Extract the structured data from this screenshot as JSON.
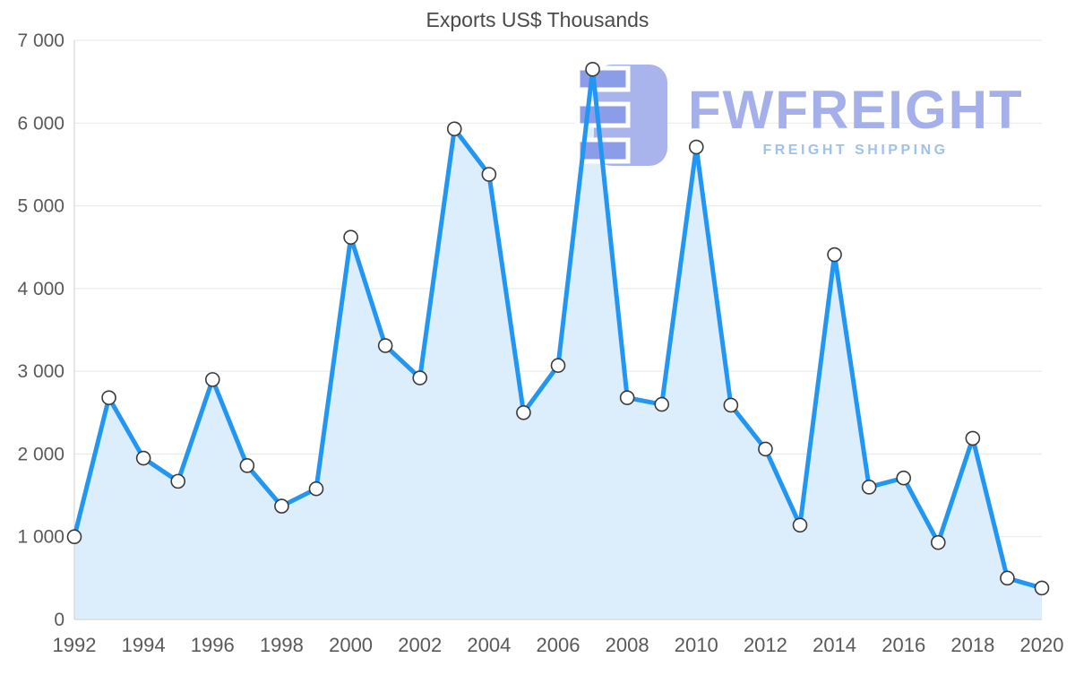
{
  "chart_data": {
    "type": "area",
    "title": "Exports US$ Thousands",
    "xlabel": "",
    "ylabel": "",
    "x": [
      1992,
      1993,
      1994,
      1995,
      1996,
      1997,
      1998,
      1999,
      2000,
      2001,
      2002,
      2003,
      2004,
      2005,
      2006,
      2007,
      2008,
      2009,
      2010,
      2011,
      2012,
      2013,
      2014,
      2015,
      2016,
      2017,
      2018,
      2019,
      2020
    ],
    "values": [
      1000,
      2680,
      1950,
      1670,
      2900,
      1860,
      1370,
      1580,
      4620,
      3310,
      2920,
      5930,
      5380,
      2500,
      3070,
      6650,
      2680,
      2600,
      5710,
      2590,
      2060,
      1140,
      4410,
      1600,
      1710,
      930,
      2190,
      500,
      380
    ],
    "ylim": [
      0,
      7000
    ],
    "grid": true,
    "x_tick_step": 2,
    "y_ticks": [
      {
        "value": 0,
        "label": "0"
      },
      {
        "value": 1000,
        "label": "1 000"
      },
      {
        "value": 2000,
        "label": "2 000"
      },
      {
        "value": 3000,
        "label": "3 000"
      },
      {
        "value": 4000,
        "label": "4 000"
      },
      {
        "value": 5000,
        "label": "5 000"
      },
      {
        "value": 6000,
        "label": "6 000"
      },
      {
        "value": 7000,
        "label": "7 000"
      }
    ],
    "line_color": "#2196f3",
    "area_color": "#dcedfc",
    "marker_fill": "#ffffff",
    "marker_stroke": "#3a3a3a"
  },
  "watermark": {
    "brand": "FWFREIGHT",
    "tagline": "FREIGHT SHIPPING",
    "brand_color": "#a5afe9",
    "tagline_color": "#9fc2e9",
    "logo_color_light": "#aab4ec",
    "logo_color_dark": "#8b9ce8"
  }
}
